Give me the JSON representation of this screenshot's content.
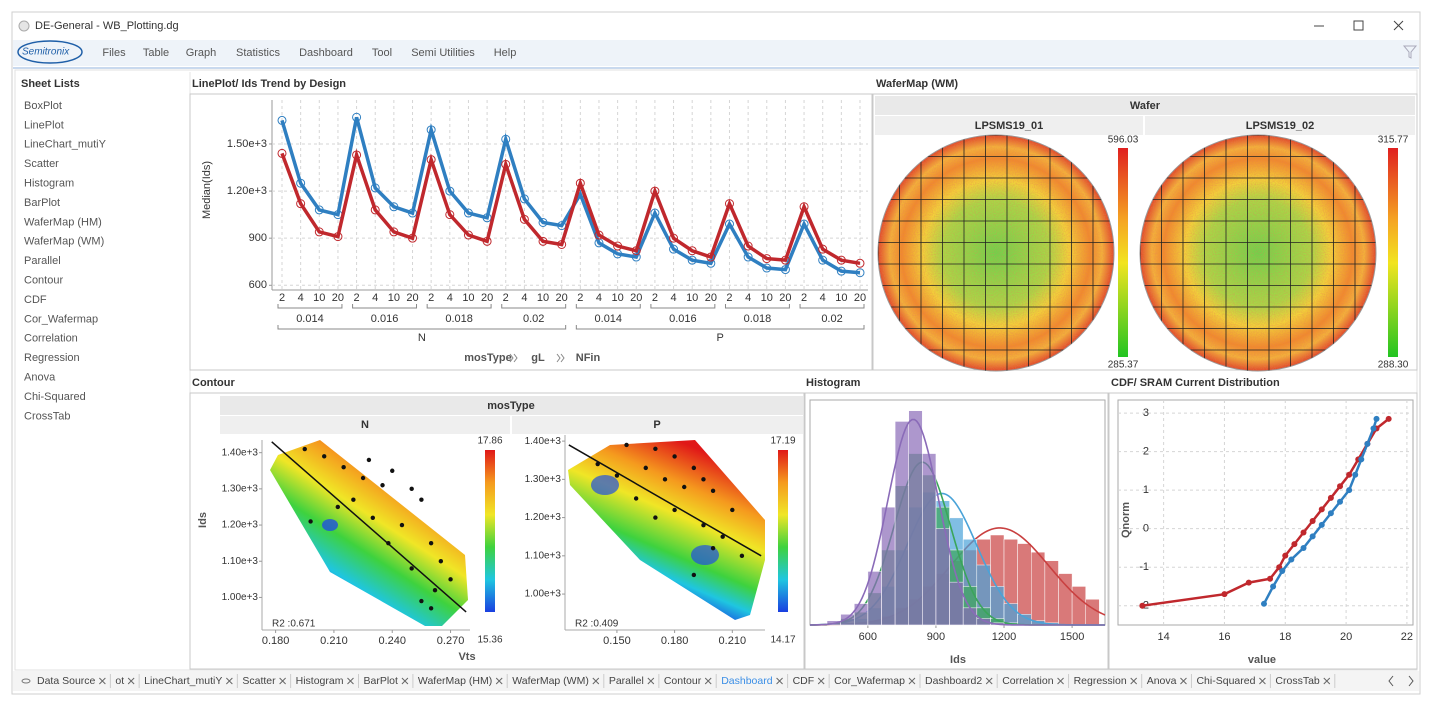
{
  "window": {
    "title": "DE-General - WB_Plotting.dg"
  },
  "menu": {
    "logo": "Semitronix",
    "items": [
      "Files",
      "Table",
      "Graph",
      "Statistics",
      "Dashboard",
      "Tool",
      "Semi Utilities",
      "Help"
    ]
  },
  "sidebar": {
    "title": "Sheet Lists",
    "items": [
      "BoxPlot",
      "LinePlot",
      "LineChart_mutiY",
      "Scatter",
      "Histogram",
      "BarPlot",
      "WaferMap (HM)",
      "WaferMap (WM)",
      "Parallel",
      "Contour",
      "CDF",
      "Cor_Wafermap",
      "Correlation",
      "Regression",
      "Anova",
      "Chi-Squared",
      "CrossTab"
    ]
  },
  "line_plot": {
    "type": "line",
    "title": "LinePlot/ Ids Trend by Design",
    "ylabel": "Median(Ids)",
    "x_axis_title": [
      "mosType",
      "gL",
      "NFin"
    ],
    "mosType": [
      "N",
      "P"
    ],
    "gL": [
      0.014,
      0.016,
      0.018,
      0.02
    ],
    "NFin": [
      2,
      4,
      10,
      20
    ],
    "ylim": [
      570,
      1780
    ],
    "yticks": [
      600,
      900,
      {
        "value": 1200,
        "label": "1.20e+3"
      },
      {
        "value": 1500,
        "label": "1.50e+3"
      }
    ],
    "grid": true,
    "series": [
      {
        "color": "#2f7fc1",
        "values": [
          1650,
          1250,
          1080,
          1050,
          1670,
          1220,
          1100,
          1060,
          1590,
          1200,
          1060,
          1030,
          1530,
          1150,
          1000,
          980,
          1180,
          870,
          800,
          780,
          1060,
          830,
          760,
          740,
          990,
          780,
          710,
          700,
          990,
          760,
          690,
          680
        ]
      },
      {
        "color": "#c0282d",
        "values": [
          1440,
          1120,
          940,
          910,
          1430,
          1080,
          940,
          900,
          1400,
          1050,
          920,
          880,
          1370,
          1020,
          880,
          860,
          1250,
          920,
          850,
          820,
          1200,
          900,
          820,
          780,
          1120,
          850,
          770,
          760,
          1100,
          830,
          760,
          740
        ]
      }
    ]
  },
  "wafer_map": {
    "title": "WaferMap (WM)",
    "header": "Wafer",
    "wafers": [
      {
        "name": "LPSMS19_01",
        "scale_max": 596.03,
        "scale_min": 285.37
      },
      {
        "name": "LPSMS19_02",
        "scale_max": 315.77,
        "scale_min": {
          "value": 288.3,
          "label": "288.30"
        }
      }
    ]
  },
  "contour": {
    "title": "Contour",
    "header": "mosType",
    "xlabel": "Vts",
    "ylabel": "Ids",
    "panels": [
      {
        "name": "N",
        "xlim": [
          0.173,
          0.28
        ],
        "xticks": [
          {
            "value": 0.18,
            "label": "0.180"
          },
          {
            "value": 0.21,
            "label": "0.210"
          },
          {
            "value": 0.24,
            "label": "0.240"
          },
          {
            "value": 0.27,
            "label": "0.270"
          }
        ],
        "ylim": [
          910,
          1435
        ],
        "yticks": [
          {
            "value": 1000,
            "label": "1.00e+3"
          },
          {
            "value": 1100,
            "label": "1.10e+3"
          },
          {
            "value": 1200,
            "label": "1.20e+3"
          },
          {
            "value": 1300,
            "label": "1.30e+3"
          },
          {
            "value": 1400,
            "label": "1.40e+3"
          }
        ],
        "scale_max": 17.86,
        "scale_min": 15.36,
        "r2_label": "R2 :0.671",
        "points": {
          "x": [
            0.195,
            0.205,
            0.215,
            0.225,
            0.235,
            0.24,
            0.25,
            0.255,
            0.22,
            0.23,
            0.245,
            0.26,
            0.265,
            0.25,
            0.27,
            0.255,
            0.26,
            0.198,
            0.212,
            0.238,
            0.262,
            0.228
          ],
          "y": [
            1410,
            1390,
            1360,
            1330,
            1310,
            1350,
            1300,
            1270,
            1270,
            1220,
            1200,
            1150,
            1100,
            1080,
            1050,
            990,
            970,
            1210,
            1250,
            1150,
            1020,
            1380
          ]
        },
        "fit": {
          "x": [
            0.178,
            0.278
          ],
          "y": [
            1430,
            960
          ]
        }
      },
      {
        "name": "P",
        "xlim": [
          0.123,
          0.227
        ],
        "xticks": [
          {
            "value": 0.15,
            "label": "0.150"
          },
          {
            "value": 0.18,
            "label": "0.180"
          },
          {
            "value": 0.21,
            "label": "0.210"
          }
        ],
        "ylim": [
          906,
          1416
        ],
        "yticks": [
          {
            "value": 1000,
            "label": "1.00e+3"
          },
          {
            "value": 1100,
            "label": "1.10e+3"
          },
          {
            "value": 1200,
            "label": "1.20e+3"
          },
          {
            "value": 1300,
            "label": "1.30e+3"
          },
          {
            "value": 1400,
            "label": "1.40e+3"
          }
        ],
        "scale_max": 17.19,
        "scale_min": 14.17,
        "r2_label": "R2 :0.409",
        "points": {
          "x": [
            0.155,
            0.17,
            0.18,
            0.19,
            0.195,
            0.2,
            0.21,
            0.185,
            0.175,
            0.165,
            0.14,
            0.16,
            0.18,
            0.195,
            0.205,
            0.215,
            0.2,
            0.19,
            0.17,
            0.15
          ],
          "y": [
            1390,
            1380,
            1360,
            1330,
            1300,
            1270,
            1220,
            1280,
            1300,
            1330,
            1340,
            1250,
            1220,
            1180,
            1150,
            1100,
            1120,
            1050,
            1200,
            1310
          ]
        },
        "fit": {
          "x": [
            0.125,
            0.225
          ],
          "y": [
            1390,
            1100
          ]
        }
      }
    ]
  },
  "histogram": {
    "type": "histogram",
    "title": "Histogram",
    "xlabel": "Ids",
    "bins": [
      420,
      480,
      540,
      600,
      660,
      720,
      780,
      840,
      900,
      960,
      1020,
      1080,
      1140,
      1200,
      1260,
      1320,
      1380,
      1440,
      1500,
      1560,
      1620
    ],
    "xlim": [
      345,
      1645
    ],
    "xticks": [
      600,
      900,
      1200,
      1500
    ],
    "ylim": [
      0,
      105
    ],
    "series": [
      {
        "color": "#c94040",
        "values": [
          0,
          0,
          1,
          2,
          4,
          8,
          12,
          18,
          24,
          30,
          35,
          40,
          42,
          40,
          38,
          34,
          30,
          24,
          18,
          12
        ]
      },
      {
        "color": "#4aa3d8",
        "values": [
          0,
          1,
          3,
          8,
          18,
          35,
          55,
          62,
          58,
          50,
          40,
          28,
          18,
          10,
          5,
          2,
          1,
          0,
          0,
          0
        ]
      },
      {
        "color": "#3aa55a",
        "values": [
          1,
          3,
          6,
          15,
          35,
          65,
          80,
          70,
          55,
          35,
          18,
          8,
          3,
          1,
          0,
          0,
          0,
          0,
          0,
          0
        ]
      },
      {
        "color": "#8a6bb8",
        "values": [
          2,
          5,
          10,
          25,
          55,
          95,
          100,
          80,
          45,
          20,
          8,
          3,
          1,
          0,
          0,
          0,
          0,
          0,
          0,
          0
        ]
      }
    ]
  },
  "cdf": {
    "type": "scatter",
    "title": "CDF/ SRAM Current Distribution",
    "xlabel": "value",
    "ylabel": "Qnorm",
    "xlim": [
      12.5,
      22.2
    ],
    "ylim": [
      -2.5,
      3.34
    ],
    "xticks": [
      14,
      16,
      18,
      20,
      22
    ],
    "yticks": [
      -2,
      -1,
      0,
      1,
      2,
      3
    ],
    "grid": true,
    "series": [
      {
        "color": "#c0282d",
        "x": [
          13.3,
          16,
          16.8,
          17.5,
          17.8,
          18,
          18.3,
          18.6,
          18.9,
          19.2,
          19.5,
          19.8,
          20.1,
          20.4,
          20.7,
          21.0,
          21.4
        ],
        "values": [
          -2,
          -1.7,
          -1.4,
          -1.3,
          -1,
          -0.7,
          -0.4,
          -0.1,
          0.2,
          0.5,
          0.8,
          1.1,
          1.4,
          1.8,
          2.2,
          2.6,
          2.85
        ]
      },
      {
        "color": "#2f7fc1",
        "x": [
          17.3,
          17.6,
          17.9,
          18.2,
          18.6,
          18.9,
          19.2,
          19.5,
          19.8,
          20.1,
          20.3,
          20.5,
          20.7,
          20.9,
          21.0
        ],
        "values": [
          -1.95,
          -1.5,
          -1.1,
          -0.8,
          -0.5,
          -0.2,
          0.1,
          0.4,
          0.7,
          1.0,
          1.4,
          1.8,
          2.2,
          2.6,
          2.85
        ]
      }
    ]
  },
  "tabs": {
    "items": [
      "Data Source",
      "ot",
      "LineChart_mutiY",
      "Scatter",
      "Histogram",
      "BarPlot",
      "WaferMap (HM)",
      "WaferMap (WM)",
      "Parallel",
      "Contour",
      "Dashboard",
      "CDF",
      "Cor_Wafermap",
      "Dashboard2",
      "Correlation",
      "Regression",
      "Anova",
      "Chi-Squared",
      "CrossTab"
    ],
    "active": "Dashboard"
  }
}
